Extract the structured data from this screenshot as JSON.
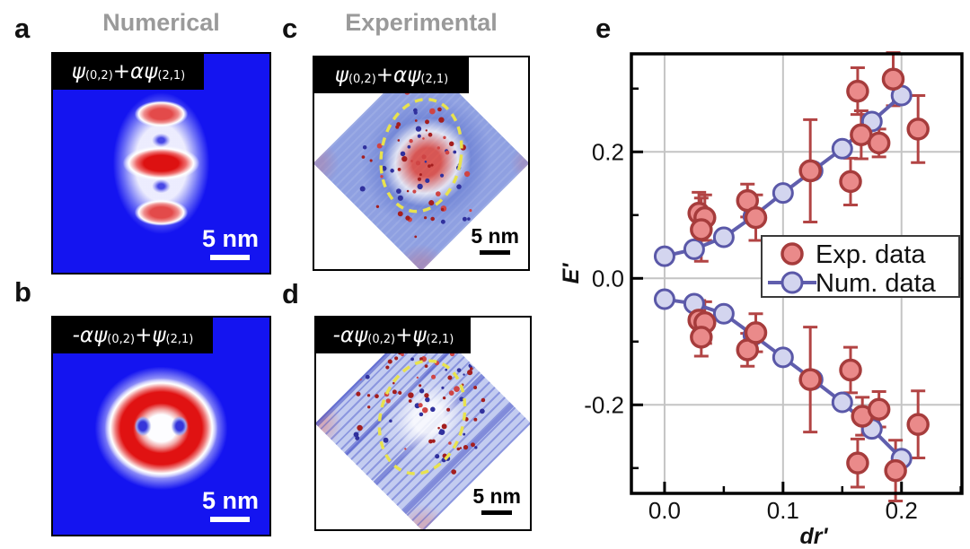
{
  "colors": {
    "exp_fill": "#ea8a8a",
    "exp_stroke": "#a63c3c",
    "exp_errorbar": "#b24444",
    "num_fill": "#d3d5ef",
    "num_stroke": "#5a58a8",
    "num_line": "#605ead",
    "grid": "#c4c4c4",
    "frame": "#000000",
    "panel_blue": "#1414f0",
    "title_gray": "#9a9a9a",
    "ellipse_yellow": "#e8e24e",
    "label_box_bg": "#000000",
    "label_box_text": "#ffffff"
  },
  "panels": {
    "a": {
      "letter": "a",
      "column_title": "Numerical",
      "formula": {
        "p1": "ψ",
        "s1": "(0,2)",
        "p2": "+αψ",
        "s2": "(2,1)"
      },
      "scale_label": "5 nm"
    },
    "b": {
      "letter": "b",
      "formula": {
        "p1": "-αψ",
        "s1": "(0,2)",
        "p2": "+ψ",
        "s2": "(2,1)"
      },
      "scale_label": "5 nm"
    },
    "c": {
      "letter": "c",
      "column_title": "Experimental",
      "formula": {
        "p1": "ψ",
        "s1": "(0,2)",
        "p2": "+αψ",
        "s2": "(2,1)"
      },
      "scale_label": "5 nm"
    },
    "d": {
      "letter": "d",
      "formula": {
        "p1": "-αψ",
        "s1": "(0,2)",
        "p2": "+ψ",
        "s2": "(2,1)"
      },
      "scale_label": "5 nm"
    },
    "e": {
      "letter": "e"
    }
  },
  "chart_data": {
    "type": "scatter",
    "xlabel": "dr'",
    "ylabel": "E'",
    "xlim": [
      -0.028,
      0.251
    ],
    "ylim": [
      -0.34,
      0.355
    ],
    "grid": true,
    "legend": {
      "position": "bottom-right",
      "entries": [
        "Exp. data",
        "Num. data"
      ]
    },
    "x_axis": {
      "major": [
        {
          "v": 0.0,
          "label": "0.0"
        },
        {
          "v": 0.1,
          "label": "0.1"
        },
        {
          "v": 0.2,
          "label": "0.2"
        }
      ],
      "minor": [
        0.05,
        0.15,
        0.25
      ]
    },
    "y_axis": {
      "major": [
        {
          "v": 0.2,
          "label": "0.2"
        },
        {
          "v": 0.0,
          "label": "0.0"
        },
        {
          "v": -0.2,
          "label": "-0.2"
        }
      ],
      "minor": [
        0.3,
        0.1,
        -0.1,
        -0.3
      ]
    },
    "series": [
      {
        "name": "Exp. data",
        "type": "scatter_errorbar",
        "points": [
          {
            "x": 0.029,
            "y": 0.103,
            "err": 0.033
          },
          {
            "x": 0.034,
            "y": 0.096,
            "err": 0.036
          },
          {
            "x": 0.031,
            "y": 0.077,
            "err": 0.05
          },
          {
            "x": 0.07,
            "y": 0.123,
            "err": 0.026
          },
          {
            "x": 0.077,
            "y": 0.096,
            "err": 0.036
          },
          {
            "x": 0.123,
            "y": 0.17,
            "err": 0.081
          },
          {
            "x": 0.157,
            "y": 0.153,
            "err": 0.037
          },
          {
            "x": 0.163,
            "y": 0.296,
            "err": 0.037
          },
          {
            "x": 0.166,
            "y": 0.227,
            "err": 0.038
          },
          {
            "x": 0.181,
            "y": 0.214,
            "err": 0.022
          },
          {
            "x": 0.193,
            "y": 0.315,
            "err": 0.042
          },
          {
            "x": 0.214,
            "y": 0.236,
            "err": 0.053
          },
          {
            "x": 0.029,
            "y": -0.066,
            "err": 0.031
          },
          {
            "x": 0.034,
            "y": -0.07,
            "err": 0.033
          },
          {
            "x": 0.031,
            "y": -0.093,
            "err": 0.03
          },
          {
            "x": 0.07,
            "y": -0.113,
            "err": 0.026
          },
          {
            "x": 0.077,
            "y": -0.086,
            "err": 0.03
          },
          {
            "x": 0.123,
            "y": -0.16,
            "err": 0.083
          },
          {
            "x": 0.157,
            "y": -0.145,
            "err": 0.036
          },
          {
            "x": 0.167,
            "y": -0.218,
            "err": 0.03
          },
          {
            "x": 0.181,
            "y": -0.207,
            "err": 0.028
          },
          {
            "x": 0.163,
            "y": -0.292,
            "err": 0.038
          },
          {
            "x": 0.195,
            "y": -0.304,
            "err": 0.048
          },
          {
            "x": 0.214,
            "y": -0.231,
            "err": 0.053
          }
        ]
      },
      {
        "name": "Num. data",
        "type": "line_scatter",
        "branches": [
          [
            {
              "x": 0.0,
              "y": 0.035
            },
            {
              "x": 0.025,
              "y": 0.046
            },
            {
              "x": 0.05,
              "y": 0.065
            },
            {
              "x": 0.075,
              "y": 0.098
            },
            {
              "x": 0.1,
              "y": 0.135
            },
            {
              "x": 0.125,
              "y": 0.17
            },
            {
              "x": 0.15,
              "y": 0.205
            },
            {
              "x": 0.175,
              "y": 0.248
            },
            {
              "x": 0.2,
              "y": 0.289
            }
          ],
          [
            {
              "x": 0.0,
              "y": -0.033
            },
            {
              "x": 0.025,
              "y": -0.04
            },
            {
              "x": 0.05,
              "y": -0.056
            },
            {
              "x": 0.075,
              "y": -0.09
            },
            {
              "x": 0.1,
              "y": -0.125
            },
            {
              "x": 0.125,
              "y": -0.16
            },
            {
              "x": 0.15,
              "y": -0.196
            },
            {
              "x": 0.175,
              "y": -0.238
            },
            {
              "x": 0.2,
              "y": -0.285
            }
          ]
        ]
      }
    ]
  }
}
